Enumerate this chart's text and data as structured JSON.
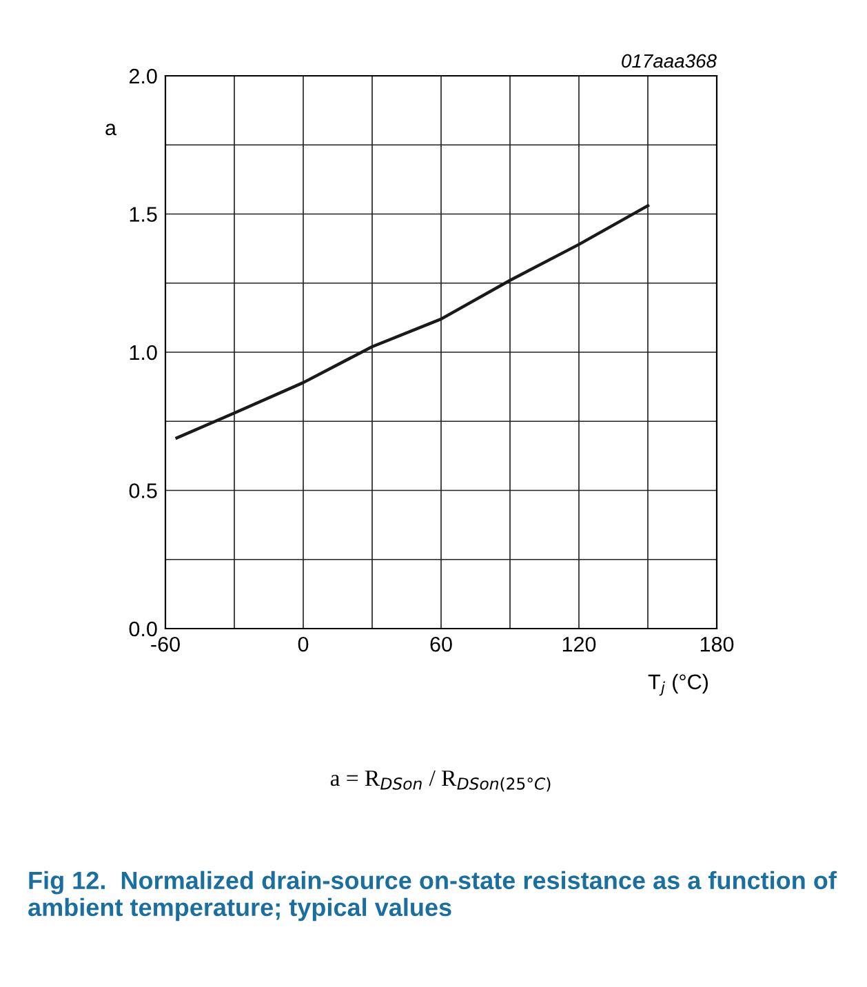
{
  "chart_data": {
    "type": "line",
    "xlabel": "T$_{j}$ (°C)",
    "ylabel": "a",
    "x": [
      -55,
      -30,
      0,
      30,
      60,
      90,
      120,
      150
    ],
    "series": [
      {
        "color": "#1a1a1a",
        "values": [
          0.69,
          0.78,
          0.89,
          1.02,
          1.12,
          1.26,
          1.39,
          1.53
        ]
      }
    ],
    "xlim": [
      -60,
      180
    ],
    "xticks": [
      -60,
      {
        "value": -30,
        "label": null
      },
      0,
      {
        "value": 30,
        "label": null
      },
      60,
      {
        "value": 90,
        "label": null
      },
      120,
      {
        "value": 150,
        "label": null
      },
      180
    ],
    "ylim": [
      0,
      2
    ],
    "yticks": [
      {
        "value": 0,
        "label": "0.0"
      },
      {
        "value": 0.25,
        "label": null
      },
      {
        "value": 0.5,
        "label": "0.5"
      },
      {
        "value": 0.75,
        "label": null
      },
      {
        "value": 1.0,
        "label": "1.0"
      },
      {
        "value": 1.25,
        "label": null
      },
      {
        "value": 1.5,
        "label": "1.5"
      },
      {
        "value": 1.75,
        "label": null
      },
      {
        "value": 2.0,
        "label": "2.0"
      }
    ],
    "grid": true,
    "line_style": "solid",
    "marker": "none",
    "annotations": [
      "017aaa368",
      "a = R$_{DSon}$ / R$_{DSon(25°C)}$",
      "Fig 12.  Normalized drain-source on-state resistance as a function of ambient temperature; typical values"
    ]
  }
}
